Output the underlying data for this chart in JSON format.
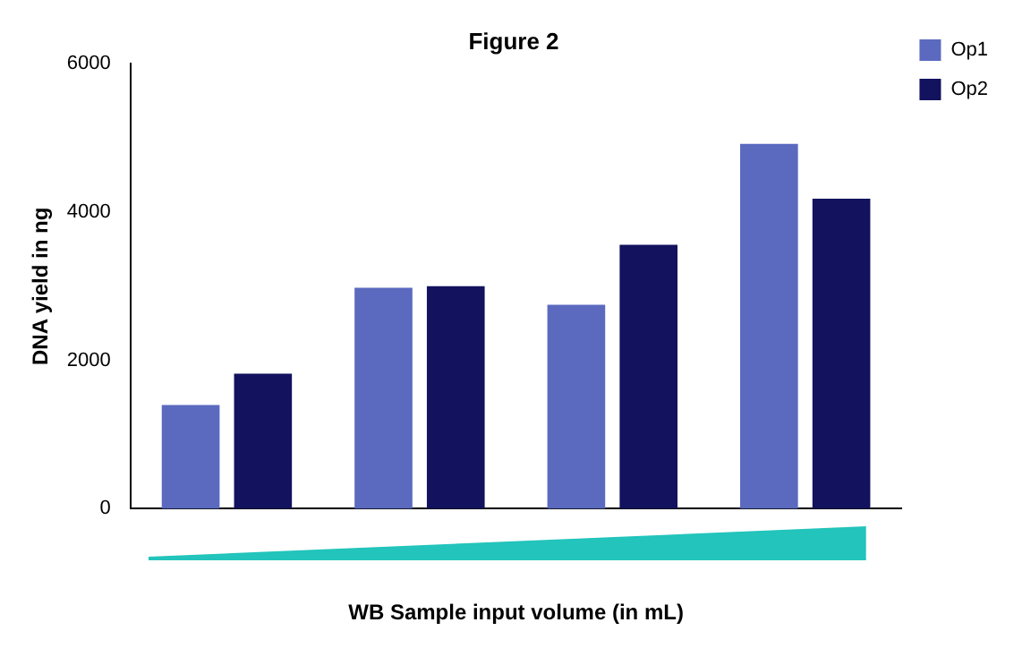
{
  "chart_data": {
    "type": "bar",
    "title": "Figure 2",
    "xlabel": "WB Sample input volume (in mL)",
    "ylabel": "DNA yield in ng",
    "categories": [
      null,
      null,
      null,
      null
    ],
    "series": [
      {
        "name": "Op1",
        "color": "#5b6abf",
        "values": [
          1400,
          2980,
          2750,
          4920
        ]
      },
      {
        "name": "Op2",
        "color": "#12125e",
        "values": [
          1820,
          3000,
          3560,
          4180
        ]
      }
    ],
    "ylim": [
      0,
      6000
    ],
    "yticks": [
      0,
      2000,
      4000,
      6000
    ],
    "grid": false,
    "legend": "top right"
  }
}
